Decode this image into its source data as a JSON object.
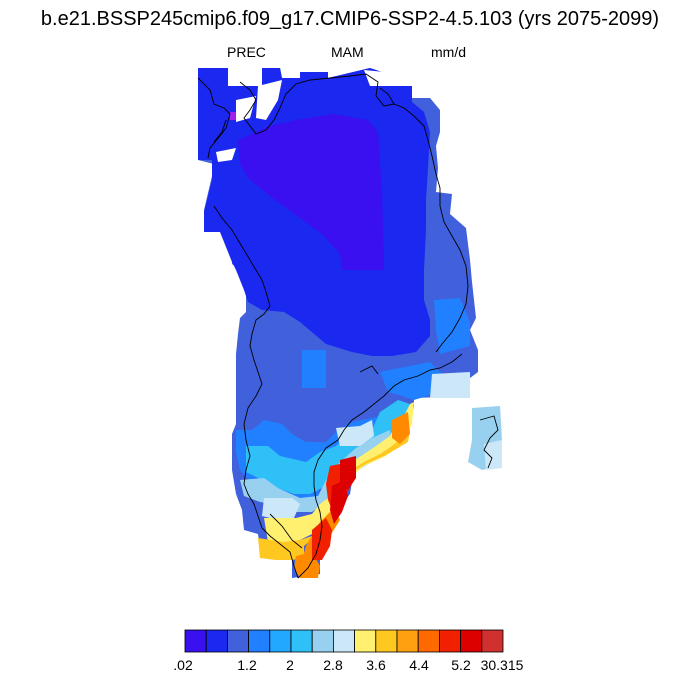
{
  "title": "b.e21.BSSP245cmip6.f09_g17.CMIP6-SSP2-4.5.103 (yrs 2075-2099)",
  "left_label": "PREC",
  "center_label": "MAM",
  "right_label": "mm/d",
  "colorbar": {
    "colors": [
      "#3a10f0",
      "#1a28f0",
      "#4060dc",
      "#2080ff",
      "#22a8ff",
      "#30c0f8",
      "#98d0f0",
      "#cce8f8",
      "#fff070",
      "#ffc820",
      "#ffa010",
      "#ff6a00",
      "#f02000",
      "#dc0000",
      "#d03030"
    ],
    "tick_labels": [
      ".02",
      "1.2",
      "2",
      "2.8",
      "3.6",
      "4.4",
      "5.2",
      "30.315"
    ]
  },
  "map": {
    "region": "Greenland",
    "fill_colors": {
      "outer_blue": "#1a28f0",
      "inner_violet": "#3a10f0",
      "medium_blue": "#4060dc",
      "light_blue": "#2080ff",
      "sky": "#30c0f8",
      "pale": "#98d0f0",
      "very_pale": "#cce8f8",
      "yellow": "#fff070",
      "gold": "#ffc820",
      "orange": "#ff8a00",
      "red": "#f02000",
      "dark_red": "#dc0000",
      "magenta_dot": "#a020f0"
    }
  }
}
